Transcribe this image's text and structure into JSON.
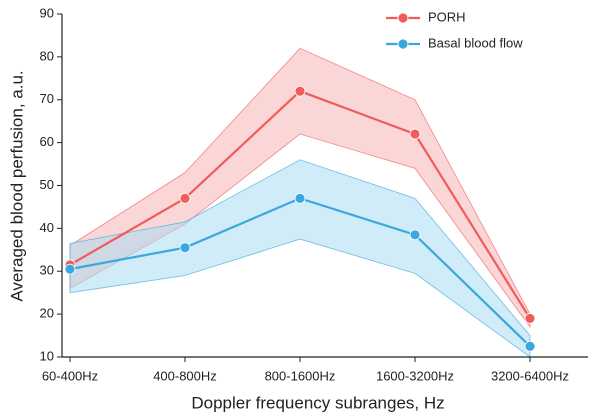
{
  "chart_data": {
    "type": "line",
    "x_label": "Doppler frequency subranges, Hz",
    "y_label": "Averaged blood perfusion, a.u.",
    "categories": [
      "60-400Hz",
      "400-800Hz",
      "800-1600Hz",
      "1600-3200Hz",
      "3200-6400Hz"
    ],
    "series": [
      {
        "name": "PORH",
        "color": "#f15b5b",
        "band_color": "#f5b4b4",
        "values": [
          31.5,
          47,
          72,
          62,
          19
        ],
        "lower": [
          26,
          41,
          62,
          54,
          17
        ],
        "upper": [
          36,
          53,
          82,
          70,
          20
        ]
      },
      {
        "name": "Basal blood flow",
        "color": "#3aa8dc",
        "band_color": "#a9dcf2",
        "values": [
          30.5,
          35.5,
          47,
          38.5,
          12.5
        ],
        "lower": [
          25,
          29,
          37.5,
          29.5,
          10
        ],
        "upper": [
          36.5,
          41.5,
          56,
          47,
          15
        ]
      }
    ],
    "ylim": [
      10,
      90
    ],
    "yticks": [
      10,
      20,
      30,
      40,
      50,
      60,
      70,
      80,
      90
    ]
  }
}
